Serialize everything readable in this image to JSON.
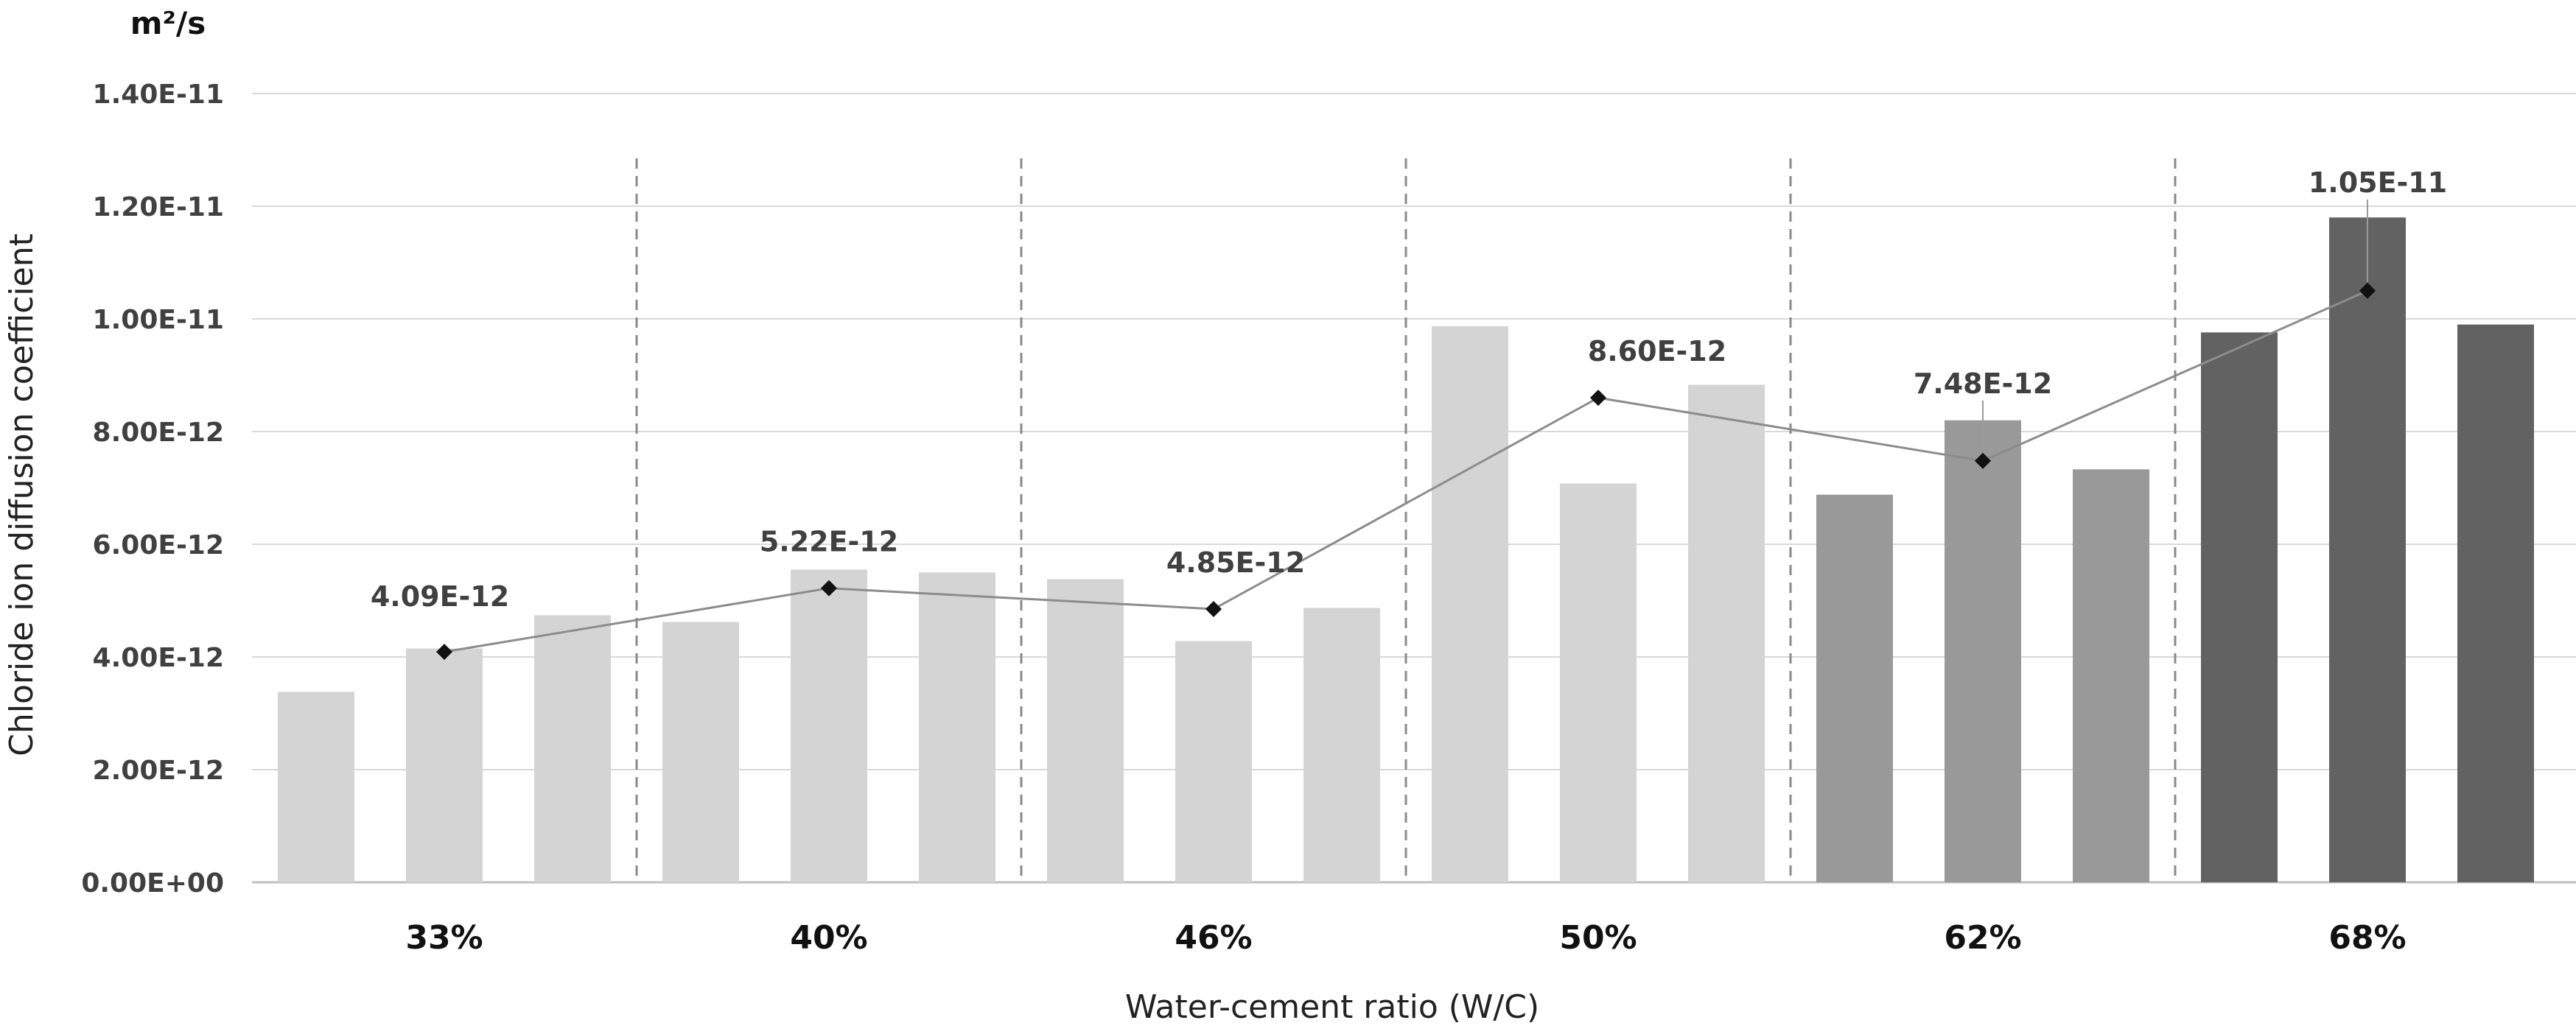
{
  "chart_data": {
    "type": "bar",
    "unit_label": "m²/s",
    "ylabel": "Chloride ion diffusion coefficient",
    "xlabel": "Water-cement ratio (W/C)",
    "ylim": [
      0,
      1.4e-11
    ],
    "yticks": [
      0,
      2e-12,
      4e-12,
      6e-12,
      8e-12,
      1e-11,
      1.2e-11,
      1.4e-11
    ],
    "ytick_labels": [
      "0.00E+00",
      "2.00E-12",
      "4.00E-12",
      "6.00E-12",
      "8.00E-12",
      "1.00E-11",
      "1.20E-11",
      "1.40E-11"
    ],
    "grid": true,
    "categories": [
      "33%",
      "40%",
      "46%",
      "50%",
      "62%",
      "68%"
    ],
    "bars": [
      [
        3.38e-12,
        4.15e-12,
        4.74e-12
      ],
      [
        4.62e-12,
        5.55e-12,
        5.5e-12
      ],
      [
        5.38e-12,
        4.28e-12,
        4.87e-12
      ],
      [
        9.87e-12,
        7.08e-12,
        8.83e-12
      ],
      [
        6.88e-12,
        8.2e-12,
        7.33e-12
      ],
      [
        9.76e-12,
        1.18e-11,
        9.9e-12
      ]
    ],
    "bar_colors": [
      "#d4d4d4",
      "#d4d4d4",
      "#d4d4d4",
      "#d4d4d4",
      "#999999",
      "#626262"
    ],
    "line": {
      "values": [
        4.09e-12,
        5.22e-12,
        4.85e-12,
        8.6e-12,
        7.48e-12,
        1.05e-11
      ],
      "labels": [
        "4.09E-12",
        "5.22E-12",
        "4.85E-12",
        "8.60E-12",
        "7.48E-12",
        "1.05E-11"
      ],
      "color": "#8c8c8c",
      "marker": "diamond"
    },
    "separators": "dashed"
  }
}
